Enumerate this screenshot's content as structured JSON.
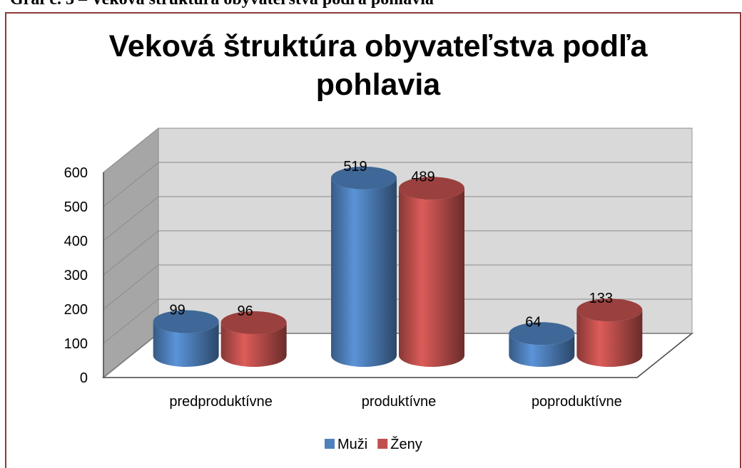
{
  "header": "Graf č. 3 – Veková štruktúra obyvateľstva podľa pohlavia",
  "chart_data": {
    "type": "bar",
    "title": "Veková štruktúra obyvateľstva podľa pohlavia",
    "categories": [
      "predproduktívne",
      "produktívne",
      "poproduktívne"
    ],
    "series": [
      {
        "name": "Muži",
        "color": "#4f81bd",
        "values": [
          99,
          519,
          64
        ]
      },
      {
        "name": "Ženy",
        "color": "#c0504d",
        "values": [
          96,
          489,
          133
        ]
      }
    ],
    "ylim": [
      0,
      600
    ],
    "yticks": [
      0,
      100,
      200,
      300,
      400,
      500,
      600
    ],
    "grid": true,
    "legend": "bottom"
  }
}
